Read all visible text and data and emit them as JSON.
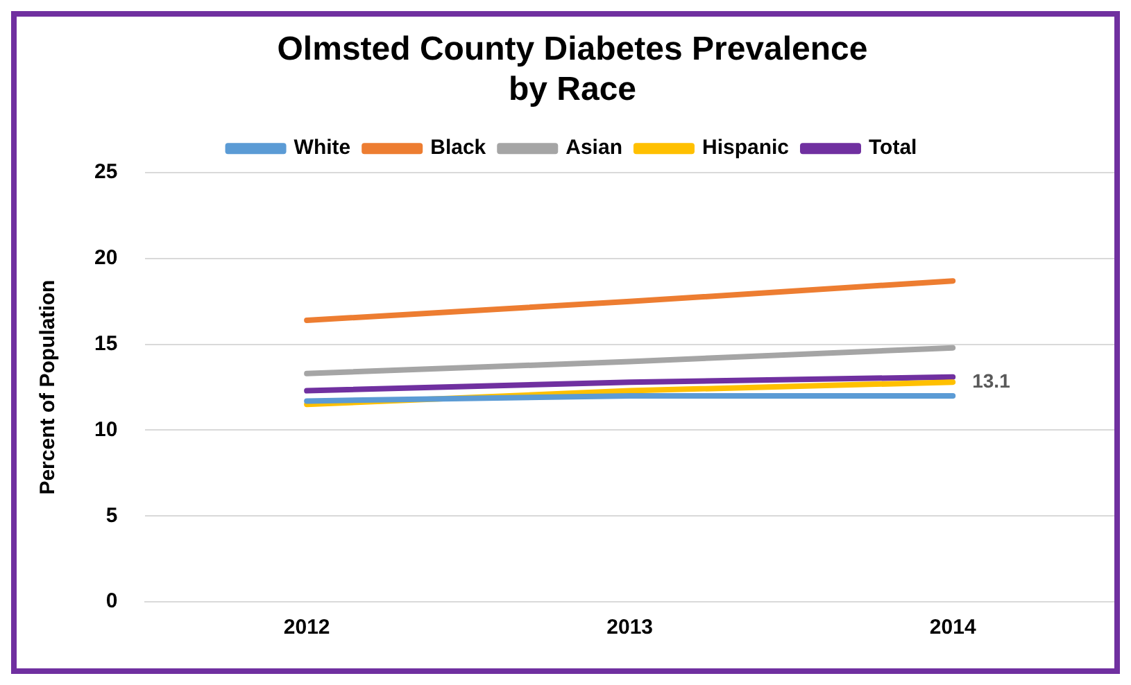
{
  "chart_data": {
    "type": "line",
    "title": [
      "Olmsted County Diabetes Prevalence",
      "by Race"
    ],
    "ylabel": "Percent of Population",
    "categories": [
      "2012",
      "2013",
      "2014"
    ],
    "series": [
      {
        "name": "White",
        "color": "#5b9bd5",
        "values": [
          11.7,
          12.0,
          12.0
        ]
      },
      {
        "name": "Black",
        "color": "#ed7d31",
        "values": [
          16.4,
          17.5,
          18.7
        ]
      },
      {
        "name": "Asian",
        "color": "#a5a5a5",
        "values": [
          13.3,
          14.0,
          14.8
        ]
      },
      {
        "name": "Hispanic",
        "color": "#ffc000",
        "values": [
          11.5,
          12.3,
          12.8
        ]
      },
      {
        "name": "Total",
        "color": "#7030a0",
        "values": [
          12.3,
          12.8,
          13.1
        ],
        "value_labels": [
          null,
          null,
          "13.1"
        ]
      }
    ],
    "ylim": [
      0,
      25
    ],
    "yticks": [
      0,
      5,
      10,
      15,
      20,
      25
    ],
    "grid": "y",
    "legend": "top",
    "marker": "none",
    "line_style": "solid"
  }
}
